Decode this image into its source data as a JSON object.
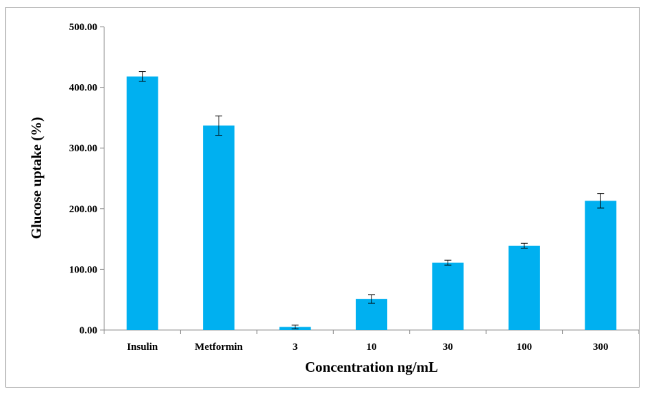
{
  "chart_data": {
    "type": "bar",
    "title": "",
    "xlabel": "Concentration ng/mL",
    "ylabel": "Glucose uptake (%)",
    "categories": [
      "Insulin",
      "Metformin",
      "3",
      "10",
      "30",
      "100",
      "300"
    ],
    "values": [
      418,
      337,
      5,
      51,
      111,
      139,
      213
    ],
    "errors": [
      8,
      16,
      3,
      7,
      4,
      4,
      12
    ],
    "ylim": [
      0,
      500
    ],
    "yticks": [
      "0.00",
      "100.00",
      "200.00",
      "300.00",
      "400.00",
      "500.00"
    ],
    "bar_color": "#00B0F0",
    "grid": false,
    "legend": "none"
  }
}
